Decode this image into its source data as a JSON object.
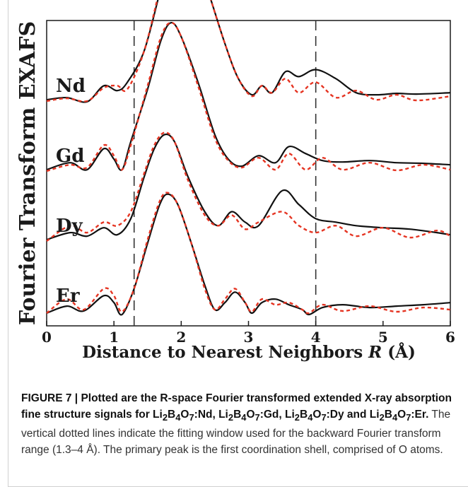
{
  "figure_label": "FIGURE 7",
  "caption_sep": " | ",
  "caption_bold_1": "Plotted are the R-space Fourier transformed extended X-ray absorption fine structure signals for Li",
  "caption_formula": {
    "parts": [
      {
        "t": "Li"
      },
      {
        "t": "2",
        "sub": true
      },
      {
        "t": "B"
      },
      {
        "t": "4",
        "sub": true
      },
      {
        "t": "O"
      },
      {
        "t": "7",
        "sub": true
      }
    ]
  },
  "caption_bold_suffixes": [
    ":Nd, ",
    ":Gd, ",
    ":Dy and ",
    ":Er."
  ],
  "caption_normal": " The vertical dotted lines indicate the fitting window used for the backward Fourier transform range (1.3–4 Å). The primary peak is the first coordination shell, comprised of O atoms.",
  "colors": {
    "measured": "#111111",
    "fit": "#e53422",
    "dash": "#333333"
  },
  "chart_data": {
    "type": "line",
    "xlabel_main": "Distance to Nearest Neighbors ",
    "xlabel_var": "R",
    "xlabel_unit": " (Å)",
    "ylabel": "Fourier Transform EXAFS",
    "xlim": [
      0,
      6
    ],
    "xticks": [
      "0",
      "1",
      "2",
      "3",
      "4",
      "5",
      "6"
    ],
    "vlines": [
      1.3,
      4.0
    ],
    "grid": false,
    "series_labels": [
      "Nd",
      "Gd",
      "Dy",
      "Er"
    ],
    "series": [
      {
        "label": "Nd",
        "offset": 3,
        "measured": [
          [
            0,
            0.05
          ],
          [
            0.3,
            0.08
          ],
          [
            0.6,
            0.02
          ],
          [
            0.85,
            0.25
          ],
          [
            1.05,
            0.18
          ],
          [
            1.2,
            0.3
          ],
          [
            1.45,
            0.75
          ],
          [
            1.7,
            1.65
          ],
          [
            1.9,
            2.35
          ],
          [
            2.0,
            2.5
          ],
          [
            2.15,
            2.3
          ],
          [
            2.4,
            1.6
          ],
          [
            2.65,
            0.85
          ],
          [
            2.85,
            0.35
          ],
          [
            3.05,
            0.12
          ],
          [
            3.2,
            0.25
          ],
          [
            3.35,
            0.15
          ],
          [
            3.55,
            0.45
          ],
          [
            3.75,
            0.38
          ],
          [
            4.0,
            0.48
          ],
          [
            4.3,
            0.35
          ],
          [
            4.6,
            0.15
          ],
          [
            4.9,
            0.12
          ],
          [
            5.2,
            0.14
          ],
          [
            5.5,
            0.13
          ],
          [
            6.0,
            0.15
          ]
        ],
        "fit": [
          [
            0,
            0.03
          ],
          [
            0.3,
            0.07
          ],
          [
            0.6,
            0.03
          ],
          [
            0.85,
            0.22
          ],
          [
            1.05,
            0.25
          ],
          [
            1.2,
            0.2
          ],
          [
            1.45,
            0.75
          ],
          [
            1.7,
            1.7
          ],
          [
            1.9,
            2.4
          ],
          [
            2.0,
            2.55
          ],
          [
            2.15,
            2.35
          ],
          [
            2.4,
            1.6
          ],
          [
            2.65,
            0.85
          ],
          [
            2.85,
            0.35
          ],
          [
            3.05,
            0.1
          ],
          [
            3.2,
            0.25
          ],
          [
            3.35,
            0.15
          ],
          [
            3.55,
            0.35
          ],
          [
            3.75,
            0.15
          ],
          [
            4.0,
            0.3
          ],
          [
            4.3,
            0.08
          ],
          [
            4.6,
            0.18
          ],
          [
            4.9,
            0.05
          ],
          [
            5.2,
            0.12
          ],
          [
            5.5,
            0.04
          ],
          [
            6.0,
            0.1
          ]
        ]
      },
      {
        "label": "Gd",
        "offset": 2,
        "measured": [
          [
            0,
            0.05
          ],
          [
            0.35,
            0.15
          ],
          [
            0.6,
            0.05
          ],
          [
            0.85,
            0.35
          ],
          [
            1.0,
            0.2
          ],
          [
            1.12,
            0.05
          ],
          [
            1.25,
            0.45
          ],
          [
            1.5,
            1.2
          ],
          [
            1.7,
            1.9
          ],
          [
            1.85,
            2.15
          ],
          [
            2.0,
            1.95
          ],
          [
            2.25,
            1.3
          ],
          [
            2.5,
            0.55
          ],
          [
            2.7,
            0.2
          ],
          [
            2.9,
            0.1
          ],
          [
            3.15,
            0.25
          ],
          [
            3.4,
            0.15
          ],
          [
            3.6,
            0.38
          ],
          [
            3.85,
            0.28
          ],
          [
            4.1,
            0.18
          ],
          [
            4.4,
            0.16
          ],
          [
            4.8,
            0.18
          ],
          [
            5.2,
            0.15
          ],
          [
            5.6,
            0.14
          ],
          [
            6.0,
            0.12
          ]
        ],
        "fit": [
          [
            0,
            0.03
          ],
          [
            0.35,
            0.12
          ],
          [
            0.6,
            0.08
          ],
          [
            0.85,
            0.4
          ],
          [
            1.0,
            0.25
          ],
          [
            1.12,
            0.05
          ],
          [
            1.25,
            0.4
          ],
          [
            1.5,
            1.25
          ],
          [
            1.7,
            1.95
          ],
          [
            1.85,
            2.15
          ],
          [
            2.0,
            1.95
          ],
          [
            2.25,
            1.25
          ],
          [
            2.5,
            0.5
          ],
          [
            2.7,
            0.18
          ],
          [
            2.9,
            0.08
          ],
          [
            3.15,
            0.22
          ],
          [
            3.4,
            0.05
          ],
          [
            3.6,
            0.28
          ],
          [
            3.85,
            0.05
          ],
          [
            4.1,
            0.22
          ],
          [
            4.4,
            0.05
          ],
          [
            4.8,
            0.15
          ],
          [
            5.2,
            0.04
          ],
          [
            5.6,
            0.12
          ],
          [
            6.0,
            0.05
          ]
        ]
      },
      {
        "label": "Dy",
        "offset": 1,
        "measured": [
          [
            0,
            0.05
          ],
          [
            0.35,
            0.15
          ],
          [
            0.6,
            0.1
          ],
          [
            0.85,
            0.22
          ],
          [
            1.05,
            0.12
          ],
          [
            1.25,
            0.35
          ],
          [
            1.45,
            0.95
          ],
          [
            1.6,
            1.35
          ],
          [
            1.75,
            1.55
          ],
          [
            1.9,
            1.45
          ],
          [
            2.1,
            0.95
          ],
          [
            2.35,
            0.45
          ],
          [
            2.55,
            0.25
          ],
          [
            2.75,
            0.45
          ],
          [
            2.95,
            0.3
          ],
          [
            3.15,
            0.25
          ],
          [
            3.5,
            0.75
          ],
          [
            3.75,
            0.55
          ],
          [
            4.0,
            0.35
          ],
          [
            4.3,
            0.3
          ],
          [
            4.6,
            0.25
          ],
          [
            5.0,
            0.22
          ],
          [
            5.4,
            0.2
          ],
          [
            5.8,
            0.15
          ],
          [
            6.0,
            0.12
          ]
        ],
        "fit": [
          [
            0,
            0.03
          ],
          [
            0.35,
            0.25
          ],
          [
            0.6,
            0.15
          ],
          [
            0.85,
            0.3
          ],
          [
            1.05,
            0.25
          ],
          [
            1.25,
            0.45
          ],
          [
            1.45,
            1.0
          ],
          [
            1.6,
            1.4
          ],
          [
            1.75,
            1.58
          ],
          [
            1.9,
            1.45
          ],
          [
            2.1,
            0.9
          ],
          [
            2.35,
            0.4
          ],
          [
            2.55,
            0.25
          ],
          [
            2.75,
            0.4
          ],
          [
            2.95,
            0.2
          ],
          [
            3.15,
            0.3
          ],
          [
            3.5,
            0.45
          ],
          [
            3.75,
            0.25
          ],
          [
            4.0,
            0.15
          ],
          [
            4.3,
            0.25
          ],
          [
            4.6,
            0.1
          ],
          [
            5.0,
            0.22
          ],
          [
            5.4,
            0.08
          ],
          [
            5.8,
            0.18
          ],
          [
            6.0,
            0.1
          ]
        ]
      },
      {
        "label": "Er",
        "offset": 0,
        "measured": [
          [
            0,
            0.0
          ],
          [
            0.3,
            0.1
          ],
          [
            0.55,
            0.03
          ],
          [
            0.85,
            0.25
          ],
          [
            1.0,
            0.15
          ],
          [
            1.12,
            -0.02
          ],
          [
            1.3,
            0.35
          ],
          [
            1.5,
            1.0
          ],
          [
            1.68,
            1.55
          ],
          [
            1.8,
            1.7
          ],
          [
            1.95,
            1.55
          ],
          [
            2.15,
            1.0
          ],
          [
            2.35,
            0.4
          ],
          [
            2.5,
            0.05
          ],
          [
            2.65,
            0.15
          ],
          [
            2.8,
            0.3
          ],
          [
            2.95,
            0.15
          ],
          [
            3.05,
            0.0
          ],
          [
            3.2,
            0.15
          ],
          [
            3.4,
            0.2
          ],
          [
            3.6,
            0.12
          ],
          [
            3.8,
            0.05
          ],
          [
            3.9,
            -0.02
          ],
          [
            4.1,
            0.08
          ],
          [
            4.4,
            0.12
          ],
          [
            4.8,
            0.08
          ],
          [
            5.2,
            0.1
          ],
          [
            5.6,
            0.12
          ],
          [
            6.0,
            0.15
          ]
        ],
        "fit": [
          [
            0,
            0.0
          ],
          [
            0.3,
            0.2
          ],
          [
            0.55,
            0.05
          ],
          [
            0.85,
            0.35
          ],
          [
            1.0,
            0.25
          ],
          [
            1.12,
            0.02
          ],
          [
            1.3,
            0.35
          ],
          [
            1.5,
            1.05
          ],
          [
            1.68,
            1.6
          ],
          [
            1.8,
            1.72
          ],
          [
            1.95,
            1.55
          ],
          [
            2.15,
            1.0
          ],
          [
            2.35,
            0.35
          ],
          [
            2.5,
            0.05
          ],
          [
            2.65,
            0.2
          ],
          [
            2.8,
            0.35
          ],
          [
            2.95,
            0.15
          ],
          [
            3.05,
            0.02
          ],
          [
            3.2,
            0.2
          ],
          [
            3.4,
            0.12
          ],
          [
            3.6,
            0.15
          ],
          [
            3.8,
            0.05
          ],
          [
            3.9,
            0.0
          ],
          [
            4.1,
            0.12
          ],
          [
            4.4,
            0.03
          ],
          [
            4.8,
            0.1
          ],
          [
            5.2,
            0.02
          ],
          [
            5.6,
            0.08
          ],
          [
            6.0,
            0.05
          ]
        ]
      }
    ]
  }
}
